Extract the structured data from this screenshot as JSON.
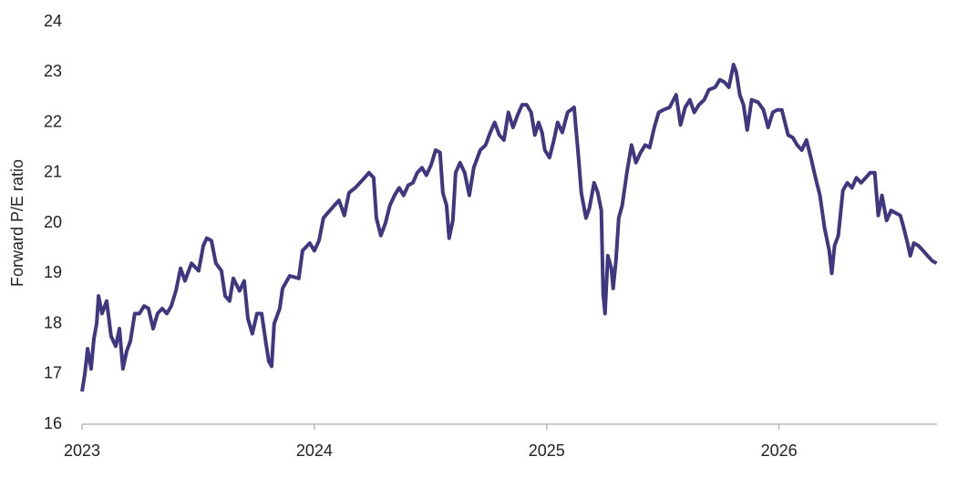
{
  "chart_data": {
    "type": "line",
    "y_label": "Forward P/E ratio",
    "x": [
      2023.0,
      2023.012,
      2023.024,
      2023.039,
      2023.051,
      2023.063,
      2023.071,
      2023.086,
      2023.106,
      2023.125,
      2023.145,
      2023.161,
      2023.176,
      2023.192,
      2023.208,
      2023.227,
      2023.247,
      2023.267,
      2023.286,
      2023.306,
      2023.325,
      2023.345,
      2023.365,
      2023.384,
      2023.404,
      2023.424,
      2023.443,
      2023.471,
      2023.502,
      2023.522,
      2023.537,
      2023.557,
      2023.576,
      2023.6,
      2023.616,
      2023.635,
      2023.651,
      2023.678,
      2023.698,
      2023.714,
      2023.733,
      2023.753,
      2023.773,
      2023.792,
      2023.804,
      2023.816,
      2023.827,
      2023.851,
      2023.863,
      2023.894,
      2023.933,
      2023.949,
      2023.98,
      2024.0,
      2024.02,
      2024.039,
      2024.067,
      2024.086,
      2024.106,
      2024.129,
      2024.149,
      2024.176,
      2024.196,
      2024.216,
      2024.235,
      2024.255,
      2024.267,
      2024.286,
      2024.306,
      2024.325,
      2024.345,
      2024.365,
      2024.384,
      2024.404,
      2024.424,
      2024.443,
      2024.463,
      2024.482,
      2024.502,
      2024.522,
      2024.541,
      2024.553,
      2024.569,
      2024.58,
      2024.596,
      2024.608,
      2024.627,
      2024.647,
      2024.667,
      2024.686,
      2024.714,
      2024.737,
      2024.757,
      2024.776,
      2024.796,
      2024.816,
      2024.835,
      2024.855,
      2024.875,
      2024.894,
      2024.914,
      2024.933,
      2024.949,
      2024.965,
      2024.98,
      2024.992,
      2025.012,
      2025.031,
      2025.047,
      2025.067,
      2025.09,
      2025.118,
      2025.137,
      2025.149,
      2025.169,
      2025.184,
      2025.204,
      2025.22,
      2025.235,
      2025.243,
      2025.251,
      2025.263,
      2025.278,
      2025.286,
      2025.298,
      2025.31,
      2025.325,
      2025.345,
      2025.365,
      2025.384,
      2025.404,
      2025.424,
      2025.443,
      2025.463,
      2025.482,
      2025.502,
      2025.529,
      2025.557,
      2025.576,
      2025.596,
      2025.616,
      2025.635,
      2025.655,
      2025.678,
      2025.698,
      2025.725,
      2025.745,
      2025.765,
      2025.784,
      2025.804,
      2025.816,
      2025.831,
      2025.847,
      2025.863,
      2025.882,
      2025.91,
      2025.933,
      2025.953,
      2025.973,
      2025.992,
      2026.012,
      2026.039,
      2026.059,
      2026.078,
      2026.098,
      2026.118,
      2026.137,
      2026.157,
      2026.176,
      2026.196,
      2026.216,
      2026.227,
      2026.239,
      2026.255,
      2026.275,
      2026.294,
      2026.314,
      2026.333,
      2026.353,
      2026.373,
      2026.392,
      2026.412,
      2026.427,
      2026.443,
      2026.463,
      2026.482,
      2026.502,
      2026.522,
      2026.537,
      2026.553,
      2026.565,
      2026.58,
      2026.6,
      2026.62,
      2026.639,
      2026.659,
      2026.678
    ],
    "series": [
      {
        "color": "#3f3780",
        "values": [
          16.65,
          17.0,
          17.5,
          17.1,
          17.7,
          18.0,
          18.55,
          18.2,
          18.45,
          17.75,
          17.55,
          17.9,
          17.1,
          17.45,
          17.65,
          18.2,
          18.2,
          18.35,
          18.3,
          17.9,
          18.2,
          18.3,
          18.2,
          18.35,
          18.65,
          19.1,
          18.85,
          19.2,
          19.05,
          19.55,
          19.7,
          19.65,
          19.2,
          19.05,
          18.55,
          18.45,
          18.9,
          18.65,
          18.85,
          18.1,
          17.8,
          18.2,
          18.2,
          17.6,
          17.25,
          17.15,
          18.0,
          18.3,
          18.7,
          18.95,
          18.9,
          19.45,
          19.6,
          19.45,
          19.65,
          20.1,
          20.25,
          20.35,
          20.45,
          20.15,
          20.6,
          20.7,
          20.8,
          20.9,
          21.0,
          20.9,
          20.1,
          19.75,
          20.0,
          20.35,
          20.55,
          20.7,
          20.55,
          20.75,
          20.8,
          21.0,
          21.1,
          20.95,
          21.15,
          21.45,
          21.4,
          20.6,
          20.35,
          19.7,
          20.05,
          21.0,
          21.2,
          21.0,
          20.55,
          21.1,
          21.45,
          21.55,
          21.8,
          22.0,
          21.75,
          21.65,
          22.2,
          21.9,
          22.15,
          22.35,
          22.35,
          22.2,
          21.75,
          22.0,
          21.8,
          21.45,
          21.3,
          21.65,
          22.0,
          21.8,
          22.2,
          22.3,
          21.3,
          20.6,
          20.1,
          20.3,
          20.8,
          20.6,
          20.25,
          18.6,
          18.2,
          19.35,
          19.1,
          18.7,
          19.25,
          20.1,
          20.35,
          21.0,
          21.55,
          21.2,
          21.4,
          21.55,
          21.5,
          21.9,
          22.2,
          22.25,
          22.3,
          22.55,
          21.95,
          22.3,
          22.45,
          22.2,
          22.35,
          22.45,
          22.65,
          22.7,
          22.85,
          22.8,
          22.7,
          23.15,
          23.0,
          22.55,
          22.35,
          21.85,
          22.45,
          22.4,
          22.25,
          21.9,
          22.2,
          22.25,
          22.25,
          21.75,
          21.7,
          21.55,
          21.45,
          21.65,
          21.3,
          20.9,
          20.55,
          19.9,
          19.45,
          19.0,
          19.55,
          19.75,
          20.65,
          20.8,
          20.7,
          20.9,
          20.8,
          20.9,
          21.0,
          21.0,
          20.15,
          20.55,
          20.05,
          20.25,
          20.2,
          20.15,
          19.9,
          19.6,
          19.35,
          19.6,
          19.55,
          19.45,
          19.35,
          19.25,
          19.2
        ]
      }
    ],
    "xlim": [
      2023,
      2026.68
    ],
    "xticks": [
      2023,
      2024,
      2025,
      2026
    ],
    "ylim": [
      16,
      24
    ],
    "yticks": [
      16,
      17,
      18,
      19,
      20,
      21,
      22,
      23,
      24
    ],
    "grid": false
  }
}
